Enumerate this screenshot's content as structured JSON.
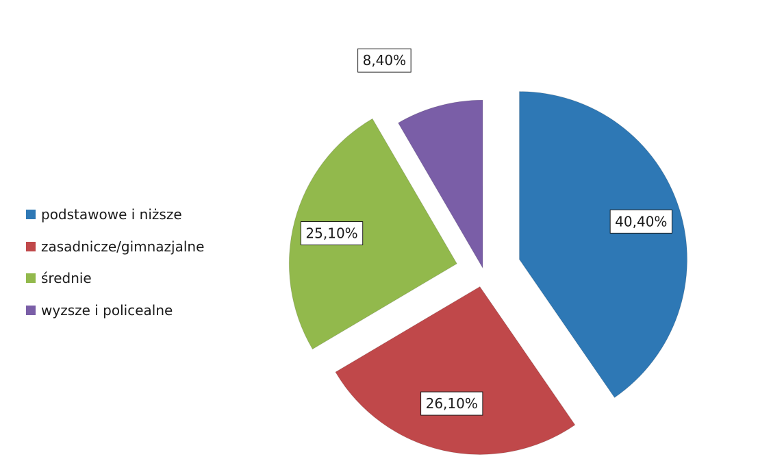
{
  "chart_data": {
    "type": "pie",
    "categories": [
      "podstawowe i niższe",
      "zasadnicze/gimnazjalne",
      "średnie",
      "wyzsze i policealne"
    ],
    "values": [
      40.4,
      26.1,
      25.1,
      8.4
    ],
    "data_labels": [
      "40,40%",
      "26,10%",
      "25,10%",
      "8,40%"
    ],
    "colors": [
      "#2e78b5",
      "#c0484a",
      "#92b94c",
      "#7a5ea7"
    ],
    "exploded": true,
    "legend_position": "left"
  },
  "legend": {
    "items": [
      {
        "label": "podstawowe i niższe",
        "color": "#2e78b5"
      },
      {
        "label": "zasadnicze/gimnazjalne",
        "color": "#c0484a"
      },
      {
        "label": "średnie",
        "color": "#92b94c"
      },
      {
        "label": "wyzsze i policealne",
        "color": "#7a5ea7"
      }
    ]
  }
}
